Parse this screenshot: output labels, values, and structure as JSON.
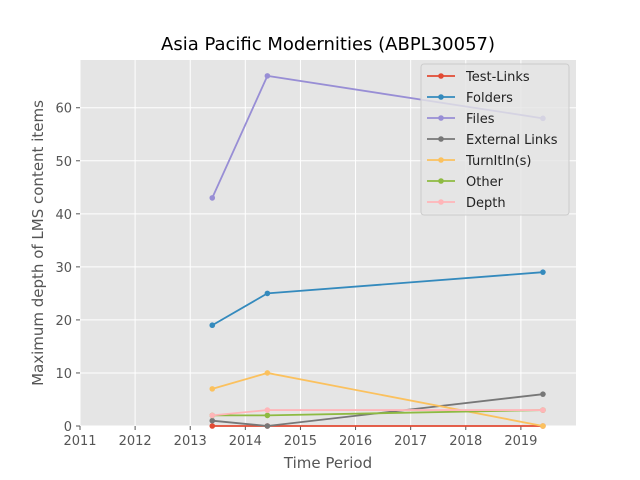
{
  "chart_data": {
    "type": "line",
    "title": "Asia Pacific Modernities (ABPL30057)",
    "xlabel": "Time Period",
    "ylabel": "Maximum depth of LMS content items",
    "xlim": [
      2011.0,
      2020.0
    ],
    "ylim": [
      0,
      69
    ],
    "x_ticks": [
      "2011",
      "2012",
      "2013",
      "2014",
      "2015",
      "2016",
      "2017",
      "2018",
      "2019"
    ],
    "y_ticks": [
      "0",
      "10",
      "20",
      "30",
      "40",
      "50",
      "60"
    ],
    "x": [
      2013.4,
      2014.4,
      2019.4
    ],
    "grid": true,
    "legend_position": "top-right",
    "series": [
      {
        "name": "Test-Links",
        "color": "#e24a33",
        "values": [
          0,
          0,
          0
        ]
      },
      {
        "name": "Folders",
        "color": "#348abd",
        "values": [
          19,
          25,
          29
        ]
      },
      {
        "name": "Files",
        "color": "#988ed5",
        "values": [
          43,
          66,
          58
        ]
      },
      {
        "name": "External Links",
        "color": "#777777",
        "values": [
          1,
          0,
          6
        ]
      },
      {
        "name": "TurnItIn(s)",
        "color": "#fbc15e",
        "values": [
          7,
          10,
          0
        ]
      },
      {
        "name": "Other",
        "color": "#8eba42",
        "values": [
          2,
          2,
          3
        ]
      },
      {
        "name": "Depth",
        "color": "#ffb5b8",
        "values": [
          2,
          3,
          3
        ]
      }
    ]
  }
}
